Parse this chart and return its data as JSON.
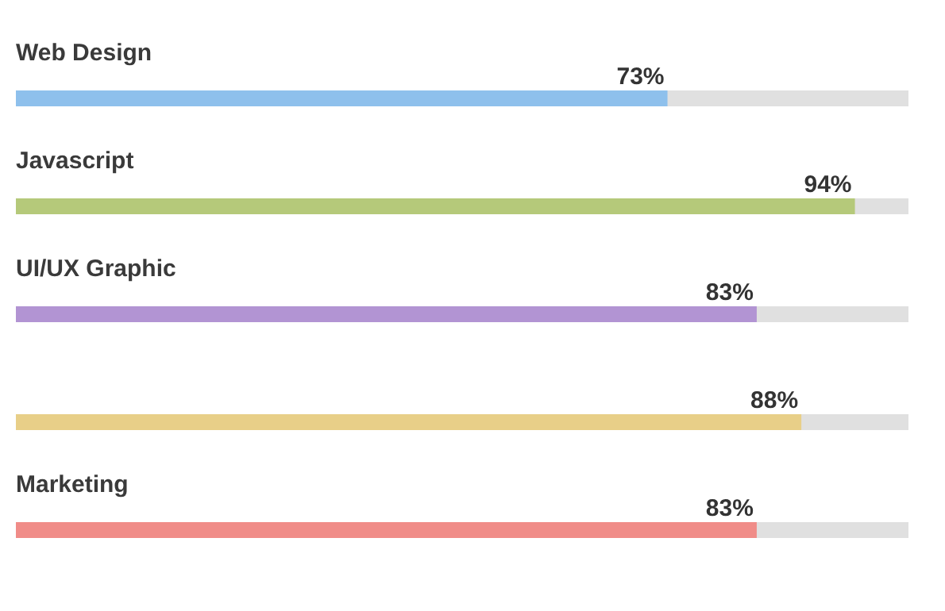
{
  "chart_data": {
    "type": "bar",
    "orientation": "horizontal",
    "categories": [
      "Web Design",
      "Javascript",
      "UI/UX Graphic",
      null,
      "Marketing"
    ],
    "values": [
      73,
      94,
      83,
      88,
      83
    ],
    "colors": [
      "#8ec0ec",
      "#b5c97a",
      "#b294d3",
      "#e8cf88",
      "#f08c88"
    ],
    "value_labels": [
      "73%",
      "94%",
      "83%",
      "88%",
      "83%"
    ],
    "xlim": [
      0,
      100
    ],
    "tick_labels": false
  }
}
